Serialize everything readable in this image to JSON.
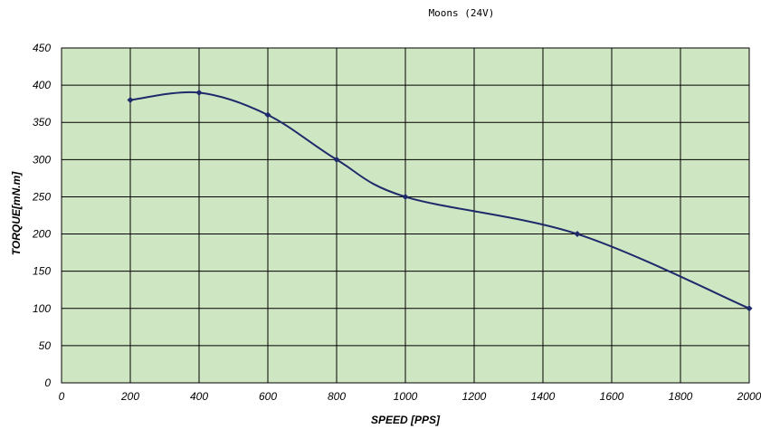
{
  "chart_data": {
    "type": "line",
    "title": "Moons (24V)",
    "xlabel": "SPEED [PPS]",
    "ylabel": "TORQUE[mN.m]",
    "xlim": [
      0,
      2000
    ],
    "ylim": [
      0,
      450
    ],
    "xticks": [
      0,
      200,
      400,
      600,
      800,
      1000,
      1200,
      1400,
      1600,
      1800,
      2000
    ],
    "yticks": [
      0,
      50,
      100,
      150,
      200,
      250,
      300,
      350,
      400,
      450
    ],
    "grid": true,
    "legend": "none",
    "colors": {
      "plot_background": "#cfe6c3",
      "grid": "#000000",
      "line": "#1f2a6b"
    },
    "series": [
      {
        "x": [
          200,
          400,
          600,
          800,
          1000,
          1500,
          2000
        ],
        "y": [
          380,
          390,
          360,
          300,
          250,
          200,
          100
        ]
      }
    ]
  }
}
